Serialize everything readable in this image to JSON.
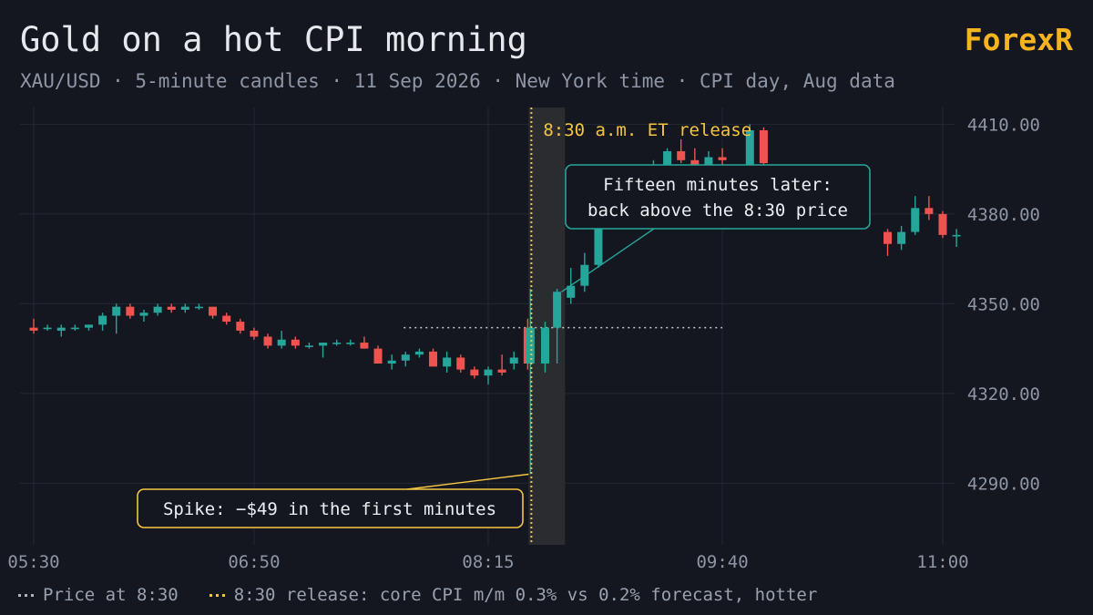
{
  "title": "Gold on a hot CPI morning",
  "brand": "ForexR",
  "subtitle": "XAU/USD · 5-minute candles · 11 Sep 2026 · New York time · CPI day, Aug data",
  "legend": {
    "price_at_830": "Price at 8:30",
    "release": "8:30 release: core CPI m/m 0.3% vs 0.2% forecast, hotter"
  },
  "colors": {
    "background": "#141720",
    "up": "#26a69a",
    "down": "#ef5350",
    "accent": "#f5c542",
    "brand": "#f5b320",
    "grid": "#232836"
  },
  "chart_data": {
    "type": "candlestick",
    "ylim": [
      4270,
      4415
    ],
    "yticks": [
      "4410.00",
      "4380.00",
      "4350.00",
      "4320.00",
      "4290.00"
    ],
    "xticks": [
      "05:30",
      "06:50",
      "08:15",
      "09:40",
      "11:00"
    ],
    "event_label": "8:30 a.m. ET release",
    "reference_price": 4342,
    "annotations": {
      "spike": "Spike: −$49 in the first minutes",
      "recovery_line1": "Fifteen minutes later:",
      "recovery_line2": "back above the 8:30 price"
    },
    "candles": [
      {
        "t": "05:30",
        "o": 4342,
        "h": 4345,
        "l": 4340,
        "c": 4341
      },
      {
        "t": "05:35",
        "o": 4342,
        "h": 4343,
        "l": 4341,
        "c": 4342
      },
      {
        "t": "05:40",
        "o": 4341,
        "h": 4343,
        "l": 4339,
        "c": 4342
      },
      {
        "t": "05:45",
        "o": 4342,
        "h": 4343,
        "l": 4341,
        "c": 4342
      },
      {
        "t": "05:50",
        "o": 4342,
        "h": 4343,
        "l": 4341,
        "c": 4343
      },
      {
        "t": "05:55",
        "o": 4343,
        "h": 4347,
        "l": 4341,
        "c": 4346
      },
      {
        "t": "06:00",
        "o": 4346,
        "h": 4350,
        "l": 4340,
        "c": 4349
      },
      {
        "t": "06:05",
        "o": 4349,
        "h": 4350,
        "l": 4345,
        "c": 4346
      },
      {
        "t": "06:10",
        "o": 4346,
        "h": 4348,
        "l": 4344,
        "c": 4347
      },
      {
        "t": "06:15",
        "o": 4347,
        "h": 4350,
        "l": 4346,
        "c": 4349
      },
      {
        "t": "06:20",
        "o": 4349,
        "h": 4350,
        "l": 4347,
        "c": 4348
      },
      {
        "t": "06:25",
        "o": 4348,
        "h": 4350,
        "l": 4347,
        "c": 4349
      },
      {
        "t": "06:30",
        "o": 4349,
        "h": 4350,
        "l": 4348,
        "c": 4349
      },
      {
        "t": "06:35",
        "o": 4349,
        "h": 4349,
        "l": 4345,
        "c": 4346
      },
      {
        "t": "06:40",
        "o": 4346,
        "h": 4347,
        "l": 4343,
        "c": 4344
      },
      {
        "t": "06:45",
        "o": 4344,
        "h": 4345,
        "l": 4340,
        "c": 4341
      },
      {
        "t": "06:50",
        "o": 4341,
        "h": 4342,
        "l": 4338,
        "c": 4339
      },
      {
        "t": "06:55",
        "o": 4339,
        "h": 4340,
        "l": 4335,
        "c": 4336
      },
      {
        "t": "07:00",
        "o": 4336,
        "h": 4341,
        "l": 4335,
        "c": 4338
      },
      {
        "t": "07:05",
        "o": 4338,
        "h": 4339,
        "l": 4335,
        "c": 4336
      },
      {
        "t": "07:10",
        "o": 4336,
        "h": 4337,
        "l": 4335,
        "c": 4336
      },
      {
        "t": "07:15",
        "o": 4336,
        "h": 4337,
        "l": 4332,
        "c": 4337
      },
      {
        "t": "07:20",
        "o": 4337,
        "h": 4338,
        "l": 4336,
        "c": 4337
      },
      {
        "t": "07:25",
        "o": 4337,
        "h": 4338,
        "l": 4336,
        "c": 4337
      },
      {
        "t": "07:30",
        "o": 4337,
        "h": 4339,
        "l": 4335,
        "c": 4335
      },
      {
        "t": "07:35",
        "o": 4335,
        "h": 4336,
        "l": 4330,
        "c": 4330
      },
      {
        "t": "07:40",
        "o": 4330,
        "h": 4333,
        "l": 4328,
        "c": 4331
      },
      {
        "t": "07:45",
        "o": 4331,
        "h": 4334,
        "l": 4329,
        "c": 4333
      },
      {
        "t": "07:50",
        "o": 4333,
        "h": 4335,
        "l": 4332,
        "c": 4334
      },
      {
        "t": "07:55",
        "o": 4334,
        "h": 4335,
        "l": 4329,
        "c": 4329
      },
      {
        "t": "08:00",
        "o": 4329,
        "h": 4334,
        "l": 4327,
        "c": 4332
      },
      {
        "t": "08:05",
        "o": 4332,
        "h": 4333,
        "l": 4327,
        "c": 4328
      },
      {
        "t": "08:10",
        "o": 4328,
        "h": 4329,
        "l": 4325,
        "c": 4326
      },
      {
        "t": "08:15",
        "o": 4326,
        "h": 4329,
        "l": 4323,
        "c": 4328
      },
      {
        "t": "08:20",
        "o": 4328,
        "h": 4333,
        "l": 4326,
        "c": 4327
      },
      {
        "t": "08:25",
        "o": 4330,
        "h": 4334,
        "l": 4328,
        "c": 4332
      },
      {
        "t": "08:30",
        "o": 4342,
        "h": 4345,
        "l": 4328,
        "c": 4330
      },
      {
        "t": "08:30",
        "o": 4330,
        "h": 4355,
        "l": 4293,
        "c": 4342
      },
      {
        "t": "08:35",
        "o": 4330,
        "h": 4344,
        "l": 4327,
        "c": 4342
      },
      {
        "t": "08:40",
        "o": 4342,
        "h": 4355,
        "l": 4330,
        "c": 4354
      },
      {
        "t": "08:45",
        "o": 4352,
        "h": 4362,
        "l": 4350,
        "c": 4356
      },
      {
        "t": "08:50",
        "o": 4356,
        "h": 4367,
        "l": 4354,
        "c": 4363
      },
      {
        "t": "08:55",
        "o": 4363,
        "h": 4381,
        "l": 4362,
        "c": 4375
      }
    ],
    "candles_late": [
      {
        "t": "09:15",
        "o": 4395,
        "h": 4398,
        "l": 4394,
        "c": 4396
      },
      {
        "t": "09:20",
        "o": 4396,
        "h": 4402,
        "l": 4393,
        "c": 4401
      },
      {
        "t": "09:25",
        "o": 4401,
        "h": 4405,
        "l": 4397,
        "c": 4398
      },
      {
        "t": "09:30",
        "o": 4398,
        "h": 4402,
        "l": 4395,
        "c": 4396
      },
      {
        "t": "09:35",
        "o": 4396,
        "h": 4401,
        "l": 4394,
        "c": 4399
      },
      {
        "t": "09:40",
        "o": 4399,
        "h": 4402,
        "l": 4395,
        "c": 4398
      },
      {
        "t": "09:50",
        "o": 4396,
        "h": 4410,
        "l": 4395,
        "c": 4408
      },
      {
        "t": "09:55",
        "o": 4408,
        "h": 4409,
        "l": 4396,
        "c": 4397
      },
      {
        "t": "10:40",
        "o": 4374,
        "h": 4375,
        "l": 4366,
        "c": 4370
      },
      {
        "t": "10:45",
        "o": 4370,
        "h": 4376,
        "l": 4368,
        "c": 4374
      },
      {
        "t": "10:50",
        "o": 4374,
        "h": 4386,
        "l": 4373,
        "c": 4382
      },
      {
        "t": "10:55",
        "o": 4382,
        "h": 4386,
        "l": 4378,
        "c": 4380
      },
      {
        "t": "11:00",
        "o": 4380,
        "h": 4381,
        "l": 4372,
        "c": 4373
      },
      {
        "t": "11:05",
        "o": 4373,
        "h": 4375,
        "l": 4369,
        "c": 4373
      }
    ]
  }
}
